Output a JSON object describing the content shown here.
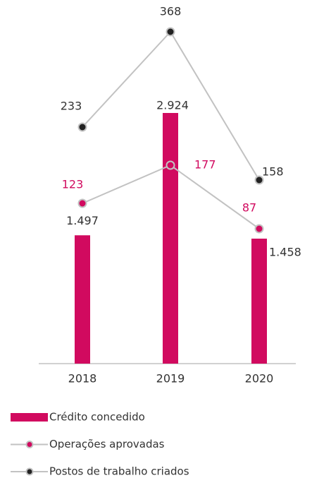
{
  "chart_data": {
    "type": "bar_line",
    "categories": [
      "2018",
      "2019",
      "2020"
    ],
    "series": [
      {
        "name": "Crédito concedido",
        "type": "bar",
        "color": "#d10a5f",
        "values": [
          1497,
          2924,
          1458
        ],
        "value_labels": [
          "1.497",
          "2.924",
          "1.458"
        ]
      },
      {
        "name": "Operações aprovadas",
        "type": "line",
        "color": "#d10a5f",
        "values": [
          123,
          177,
          87
        ]
      },
      {
        "name": "Postos de trabalho criados",
        "type": "line",
        "color": "#222222",
        "values": [
          233,
          368,
          158
        ]
      }
    ]
  }
}
